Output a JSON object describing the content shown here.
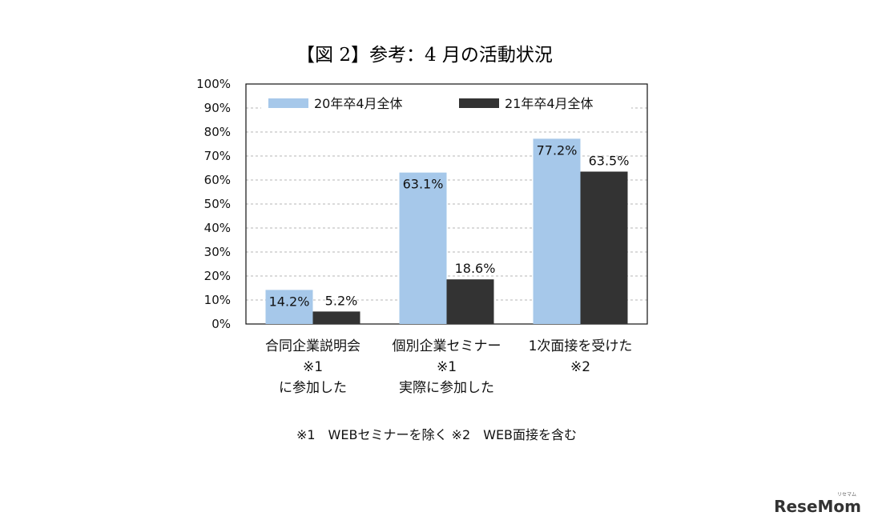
{
  "chart_data": {
    "type": "bar",
    "title": "【図 2】参考：4 月の活動状況",
    "categories": [
      [
        "合同企業説明会",
        "※1",
        "に参加した"
      ],
      [
        "個別企業セミナー",
        "※1",
        "実際に参加した"
      ],
      [
        "1次面接を受けた",
        "※2"
      ]
    ],
    "series": [
      {
        "name": "20年卒4月全体",
        "values": [
          14.2,
          63.1,
          77.2
        ],
        "labels": [
          "14.2%",
          "63.1%",
          "77.2%"
        ],
        "color": "#a6c8ea"
      },
      {
        "name": "21年卒4月全体",
        "values": [
          5.2,
          18.6,
          63.5
        ],
        "labels": [
          "5.2%",
          "18.6%",
          "63.5%"
        ],
        "color": "#333333"
      }
    ],
    "ylim": [
      0,
      100
    ],
    "yticks": [
      "0%",
      "10%",
      "20%",
      "30%",
      "40%",
      "50%",
      "60%",
      "70%",
      "80%",
      "90%",
      "100%"
    ],
    "grid": true,
    "legend": "top",
    "footnote": "※1　WEBセミナーを除く ※2　WEB面接を含む"
  },
  "watermark": {
    "text": "ReseMom",
    "subtext": "リセマム"
  }
}
